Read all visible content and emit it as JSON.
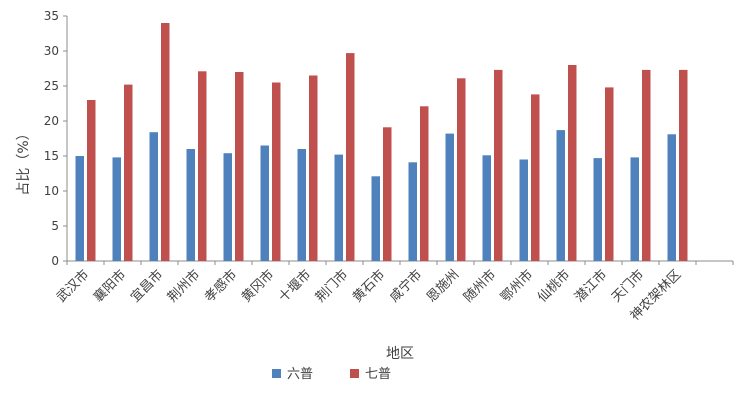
{
  "chart_data": {
    "type": "bar",
    "title": "",
    "xlabel": "地区",
    "ylabel": "占比（%）",
    "ylim": [
      0,
      35
    ],
    "yticks": [
      0,
      5,
      10,
      15,
      20,
      25,
      30,
      35
    ],
    "grid": false,
    "legend_position": "bottom",
    "categories": [
      "武汉市",
      "襄阳市",
      "宜昌市",
      "荆州市",
      "孝感市",
      "黄冈市",
      "十堰市",
      "荆门市",
      "黄石市",
      "咸宁市",
      "恩施州",
      "随州市",
      "鄂州市",
      "仙桃市",
      "潜江市",
      "天门市",
      "神农架林区"
    ],
    "series": [
      {
        "name": "六普",
        "color": "#4F81BD",
        "values": [
          15.0,
          14.8,
          18.4,
          16.0,
          15.4,
          16.5,
          16.0,
          15.2,
          12.1,
          14.1,
          18.2,
          15.1,
          14.5,
          18.7,
          14.7,
          14.8,
          18.1
        ]
      },
      {
        "name": "七普",
        "color": "#C0504D",
        "values": [
          23.0,
          25.2,
          34.0,
          27.1,
          27.0,
          25.5,
          26.5,
          29.7,
          19.1,
          22.1,
          26.1,
          27.3,
          23.8,
          28.0,
          24.8,
          27.3,
          27.3
        ]
      }
    ]
  }
}
